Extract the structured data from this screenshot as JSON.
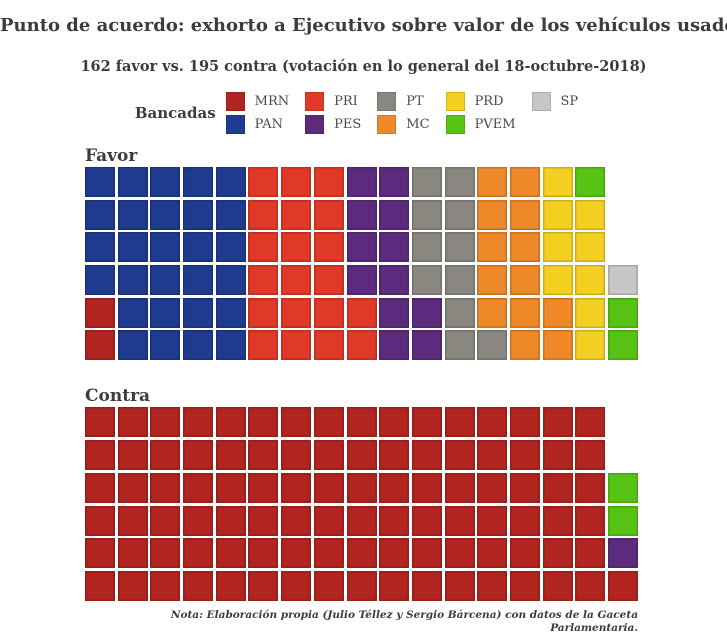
{
  "title": "Punto de acuerdo: exhorto a Ejecutivo sobre valor de los vehículos usados",
  "subtitle": "162 favor vs. 195 contra (votación en lo general del 18-octubre-2018)",
  "legend": {
    "title": "Bancadas",
    "items": [
      {
        "id": "MRN",
        "label": "MRN",
        "color": "#B1241F"
      },
      {
        "id": "PAN",
        "label": "PAN",
        "color": "#1E3B90"
      },
      {
        "id": "PRI",
        "label": "PRI",
        "color": "#E03928"
      },
      {
        "id": "PES",
        "label": "PES",
        "color": "#5C2B7E"
      },
      {
        "id": "PT",
        "label": "PT",
        "color": "#8A8780"
      },
      {
        "id": "MC",
        "label": "MC",
        "color": "#EF8829"
      },
      {
        "id": "PRD",
        "label": "PRD",
        "color": "#F3D021"
      },
      {
        "id": "PVEM",
        "label": "PVEM",
        "color": "#57C413"
      },
      {
        "id": "SP",
        "label": "SP",
        "color": "#C6C6C6"
      }
    ]
  },
  "note": "Nota: Elaboración propia (Julio Téllez y Sergio Bárcena) con datos de la Gaceta Parlamentaria.",
  "chart_data": {
    "type": "waffle",
    "title": "Punto de acuerdo: exhorto a Ejecutivo sobre valor de los vehículos usados",
    "subtitle": "162 favor vs. 195 contra (votación en lo general del 18-octubre-2018)",
    "legend_title": "Bancadas",
    "legend_entries": [
      "MRN",
      "PAN",
      "PRI",
      "PES",
      "PT",
      "MC",
      "PRD",
      "PVEM",
      "SP"
    ],
    "votes": {
      "favor": 162,
      "contra": 195
    },
    "groups": [
      {
        "label": "Favor",
        "rows": [
          [
            [
              "PAN",
              5
            ],
            [
              "PRI",
              3
            ],
            [
              "PES",
              2
            ],
            [
              "PT",
              2
            ],
            [
              "MC",
              2
            ],
            [
              "PRD",
              1
            ],
            [
              "PVEM",
              1
            ]
          ],
          [
            [
              "PAN",
              5
            ],
            [
              "PRI",
              3
            ],
            [
              "PES",
              2
            ],
            [
              "PT",
              2
            ],
            [
              "MC",
              2
            ],
            [
              "PRD",
              2
            ]
          ],
          [
            [
              "PAN",
              5
            ],
            [
              "PRI",
              3
            ],
            [
              "PES",
              2
            ],
            [
              "PT",
              2
            ],
            [
              "MC",
              2
            ],
            [
              "PRD",
              2
            ]
          ],
          [
            [
              "PAN",
              5
            ],
            [
              "PRI",
              3
            ],
            [
              "PES",
              2
            ],
            [
              "PT",
              2
            ],
            [
              "MC",
              2
            ],
            [
              "PRD",
              2
            ],
            [
              "SP",
              1
            ]
          ],
          [
            [
              "MRN",
              1
            ],
            [
              "PAN",
              4
            ],
            [
              "PRI",
              4
            ],
            [
              "PES",
              2
            ],
            [
              "PT",
              1
            ],
            [
              "MC",
              3
            ],
            [
              "PRD",
              1
            ],
            [
              "PVEM",
              1
            ]
          ],
          [
            [
              "MRN",
              1
            ],
            [
              "PAN",
              4
            ],
            [
              "PRI",
              4
            ],
            [
              "PES",
              2
            ],
            [
              "PT",
              2
            ],
            [
              "MC",
              2
            ],
            [
              "PRD",
              1
            ],
            [
              "PVEM",
              1
            ]
          ]
        ],
        "square_totals": {
          "MRN": 2,
          "PAN": 28,
          "PRI": 20,
          "PES": 12,
          "PT": 11,
          "MC": 13,
          "PRD": 9,
          "PVEM": 3,
          "SP": 1
        }
      },
      {
        "label": "Contra",
        "rows": [
          [
            [
              "MRN",
              16
            ]
          ],
          [
            [
              "MRN",
              16
            ]
          ],
          [
            [
              "MRN",
              16
            ],
            [
              "PVEM",
              1
            ]
          ],
          [
            [
              "MRN",
              16
            ],
            [
              "PVEM",
              1
            ]
          ],
          [
            [
              "MRN",
              16
            ],
            [
              "PES",
              1
            ]
          ],
          [
            [
              "MRN",
              17
            ]
          ]
        ],
        "square_totals": {
          "MRN": 97,
          "PVEM": 2,
          "PES": 1
        }
      }
    ],
    "colors": {
      "MRN": "#B1241F",
      "PAN": "#1E3B90",
      "PRI": "#E03928",
      "PES": "#5C2B7E",
      "PT": "#8A8780",
      "MC": "#EF8829",
      "PRD": "#F3D021",
      "PVEM": "#57C413",
      "SP": "#C6C6C6"
    },
    "layout": {
      "grid_columns_max": 17,
      "grid_rows": 6,
      "legend_position": "top-center"
    }
  }
}
